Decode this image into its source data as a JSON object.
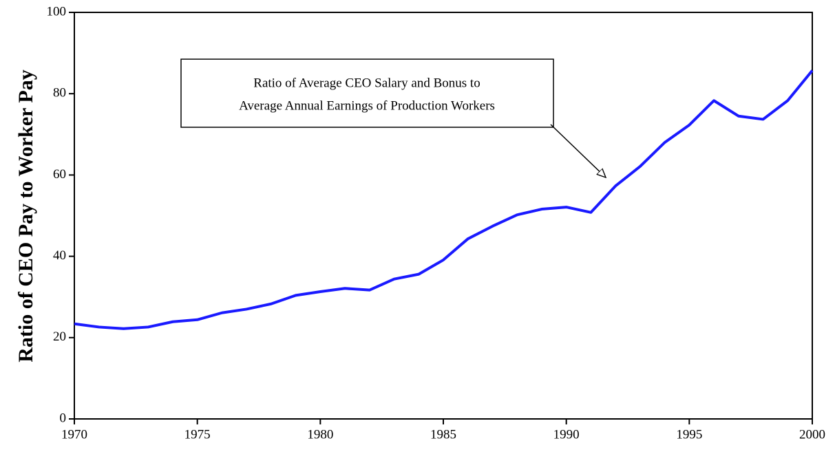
{
  "chart_data": {
    "type": "line",
    "y_label": "Ratio of CEO Pay to Worker Pay",
    "annotation": [
      "Ratio of Average CEO Salary and Bonus to",
      "Average Annual Earnings of Production Workers"
    ],
    "x": [
      1970,
      1971,
      1972,
      1973,
      1974,
      1975,
      1976,
      1977,
      1978,
      1979,
      1980,
      1981,
      1982,
      1983,
      1984,
      1985,
      1986,
      1987,
      1988,
      1989,
      1990,
      1991,
      1992,
      1993,
      1994,
      1995,
      1996,
      1997,
      1998,
      1999,
      2000
    ],
    "series": [
      {
        "color": "#1a1aff",
        "values": [
          23.4,
          22.6,
          22.2,
          22.6,
          23.9,
          24.4,
          26.1,
          27.0,
          28.3,
          30.4,
          31.3,
          32.1,
          31.7,
          34.4,
          35.6,
          39.1,
          44.3,
          47.4,
          50.2,
          51.6,
          52.1,
          50.8,
          57.3,
          62.1,
          68.0,
          72.3,
          78.3,
          74.5,
          73.7,
          78.3,
          85.7
        ]
      }
    ],
    "xlim": [
      1970,
      2000
    ],
    "xticks": [
      1970,
      1975,
      1980,
      1985,
      1990,
      1995,
      2000
    ],
    "ylim": [
      0,
      100
    ],
    "yticks": [
      0,
      20,
      40,
      60,
      80,
      100
    ],
    "grid": false
  }
}
